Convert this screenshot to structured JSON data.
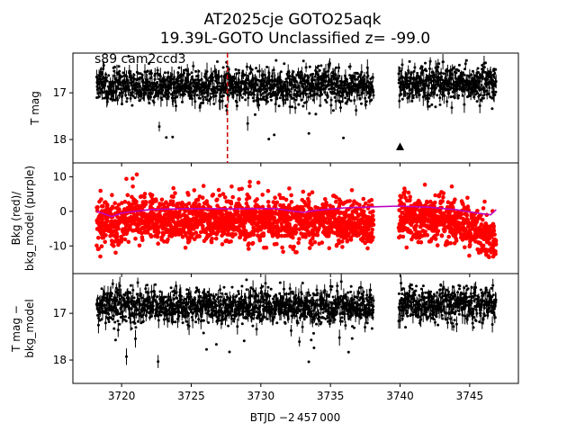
{
  "title_line1": "AT2025cje  GOTO25aqk",
  "title_line2": "19.39L-GOTO Unclassified z= -99.0",
  "xlabel": "BTJD −2 457 000",
  "colors": {
    "photometry": "#000000",
    "background": "#ff0000",
    "bkg_model": "#bf00bf",
    "event_line": "#cc0000"
  },
  "chart_data": [
    {
      "type": "scatter",
      "panel": "top",
      "ylabel": "T mag",
      "annotation": "s89 cam2ccd3",
      "y_inverted": true,
      "xlim": [
        3716.5,
        3748.5
      ],
      "ylim": [
        18.5,
        16.15
      ],
      "yticks": [
        17,
        18
      ],
      "event_time": 3727.6,
      "upper_limit": {
        "x": 3740.0,
        "y": 18.15
      },
      "segments": [
        {
          "x_start": 3718.2,
          "x_end": 3738.1,
          "mean": 16.85,
          "spread": 0.33,
          "excursion": 1.2
        },
        {
          "x_start": 3739.9,
          "x_end": 3746.9,
          "mean": 16.8,
          "spread": 0.33,
          "excursion": 0.6
        }
      ]
    },
    {
      "type": "scatter",
      "panel": "middle",
      "ylabel": "Bkg (red)/\nbkg_model (purple)",
      "xlim": [
        3716.5,
        3748.5
      ],
      "ylim": [
        -18,
        14
      ],
      "yticks": [
        10,
        0,
        -10
      ],
      "series": [
        {
          "name": "Bkg",
          "color": "red",
          "profile": [
            [
              3718.2,
              -5
            ],
            [
              3719.5,
              -3
            ],
            [
              3720.5,
              -2
            ],
            [
              3722,
              -2
            ],
            [
              3725,
              -3
            ],
            [
              3728,
              -2
            ],
            [
              3731,
              -3
            ],
            [
              3733,
              -3
            ],
            [
              3734,
              -2
            ],
            [
              3736,
              -3
            ],
            [
              3738.1,
              -4
            ],
            [
              3739.9,
              -2
            ],
            [
              3742,
              -2
            ],
            [
              3744,
              -3
            ],
            [
              3746,
              -6
            ],
            [
              3746.9,
              -9
            ]
          ]
        },
        {
          "name": "bkg_model",
          "color": "purple",
          "profile": [
            [
              3718.2,
              0
            ],
            [
              3719.3,
              -1.5
            ],
            [
              3720,
              -0.5
            ],
            [
              3722,
              0.5
            ],
            [
              3725,
              0.8
            ],
            [
              3728,
              0.7
            ],
            [
              3731,
              0.8
            ],
            [
              3733,
              -0.3
            ],
            [
              3734,
              0.3
            ],
            [
              3736,
              1
            ],
            [
              3738.1,
              1.3
            ],
            [
              3739.9,
              1.5
            ],
            [
              3742,
              1.2
            ],
            [
              3744,
              0.5
            ],
            [
              3745.5,
              -0.5
            ],
            [
              3746.5,
              -1
            ],
            [
              3746.9,
              0.5
            ]
          ]
        }
      ]
    },
    {
      "type": "scatter",
      "panel": "bottom",
      "ylabel": "T mag −\nbkg_model",
      "y_inverted": true,
      "xlim": [
        3716.5,
        3748.5
      ],
      "ylim": [
        18.5,
        16.15
      ],
      "yticks": [
        17,
        18
      ],
      "xticks": [
        3720,
        3725,
        3730,
        3735,
        3740,
        3745
      ],
      "segments": [
        {
          "x_start": 3718.2,
          "x_end": 3738.1,
          "mean": 16.85,
          "spread": 0.33,
          "excursion": 1.2
        },
        {
          "x_start": 3739.9,
          "x_end": 3746.9,
          "mean": 16.8,
          "spread": 0.33,
          "excursion": 0.6
        }
      ]
    }
  ]
}
